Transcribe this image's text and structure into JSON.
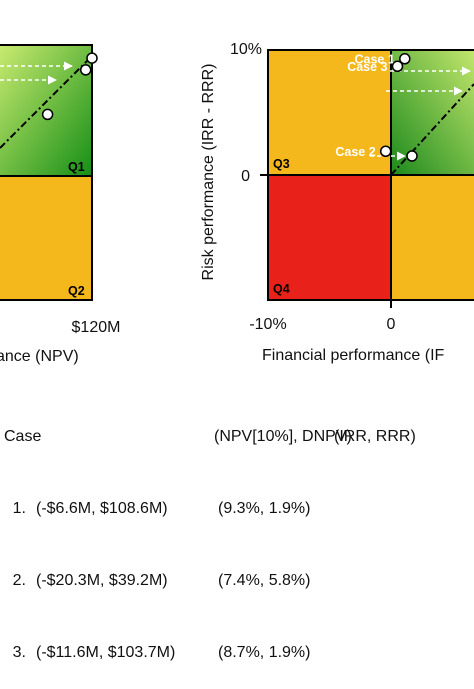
{
  "chart_data": [
    {
      "type": "scatter",
      "title": "",
      "xlabel": "ance (NPV)",
      "ylabel": "",
      "x_ticks": [
        "$120M"
      ],
      "quadrants": [
        {
          "label": "Q1",
          "color": "green-gradient"
        },
        {
          "label": "Q2",
          "color": "#f5b81c"
        }
      ],
      "series": [
        {
          "points": [
            {
              "x": 120,
              "y": 9
            },
            {
              "x": 108.6,
              "y": 8.1
            },
            {
              "x": 39.2,
              "y": 4.7
            }
          ]
        }
      ]
    },
    {
      "type": "scatter",
      "title": "",
      "xlabel": "Financial performance (IF",
      "ylabel": "Risk performance (IRR - RRR)",
      "x_ticks": [
        "-10%",
        "0"
      ],
      "y_ticks": [
        "10%",
        "0"
      ],
      "xlim": [
        -10,
        4
      ],
      "ylim": [
        -10,
        10
      ],
      "quadrants": [
        {
          "label": "Q3",
          "color": "#f5b81c"
        },
        {
          "label": "Q4",
          "color": "#e8221b"
        },
        {
          "label": "Q1",
          "color": "green-gradient"
        },
        {
          "label": "",
          "color": "#f5b81c"
        }
      ],
      "series": [
        {
          "points": [
            {
              "label": "Case 1",
              "x": -0.7,
              "y": 9.3
            },
            {
              "label": "Case 3",
              "x": -1.2,
              "y": 8.7
            },
            {
              "label": "Case 2",
              "x": -2.0,
              "y": 1.9
            }
          ]
        }
      ]
    }
  ],
  "table": {
    "header": [
      "Case",
      "(NPV[10%], DNPV)",
      "(IRR, RRR)"
    ],
    "rows": [
      [
        "1.",
        "(-$6.6M, $108.6M)",
        "(9.3%, 1.9%)"
      ],
      [
        "2.",
        "(-$20.3M, $39.2M)",
        "(7.4%, 5.8%)"
      ],
      [
        "3.",
        "(-$11.6M, $103.7M)",
        "(8.7%, 1.9%)"
      ]
    ]
  },
  "colors": {
    "green_light": "#d6f084",
    "green_dark": "#1a8a1a",
    "yellow": "#f5b81c",
    "red": "#e8221b"
  }
}
